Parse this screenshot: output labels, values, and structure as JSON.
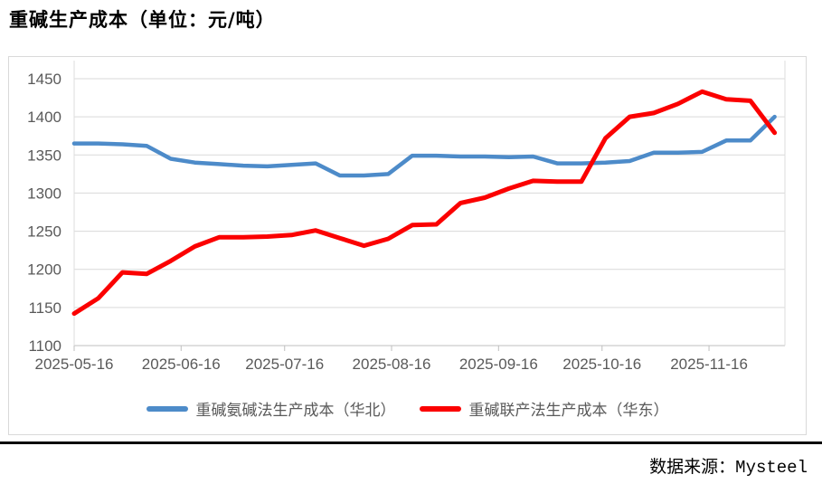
{
  "title": "重碱生产成本（单位：元/吨）",
  "source": "数据来源：Mysteel",
  "chart_data": {
    "type": "line",
    "title": "重碱生产成本（单位：元/吨）",
    "x": [
      "2025-05-16",
      "2025-05-23",
      "2025-05-30",
      "2025-06-06",
      "2025-06-13",
      "2025-06-20",
      "2025-06-27",
      "2025-07-04",
      "2025-07-11",
      "2025-07-18",
      "2025-07-25",
      "2025-08-01",
      "2025-08-08",
      "2025-08-15",
      "2025-08-22",
      "2025-08-29",
      "2025-09-05",
      "2025-09-12",
      "2025-09-19",
      "2025-09-26",
      "2025-10-03",
      "2025-10-10",
      "2025-10-17",
      "2025-10-24",
      "2025-10-31",
      "2025-11-07",
      "2025-11-14",
      "2025-11-21",
      "2025-11-28",
      "2025-12-05"
    ],
    "series": [
      {
        "name": "重碱氨碱法生产成本（华北）",
        "color": "#4d8bc9",
        "values": [
          1365,
          1365,
          1364,
          1362,
          1345,
          1340,
          1338,
          1336,
          1335,
          1337,
          1339,
          1323,
          1323,
          1325,
          1349,
          1349,
          1348,
          1348,
          1347,
          1348,
          1339,
          1339,
          1340,
          1342,
          1353,
          1353,
          1354,
          1369,
          1369,
          1400
        ]
      },
      {
        "name": "重碱联产法生产成本（华东）",
        "color": "#fb0000",
        "values": [
          1142,
          1162,
          1196,
          1194,
          1211,
          1230,
          1242,
          1242,
          1243,
          1245,
          1251,
          1241,
          1231,
          1240,
          1258,
          1259,
          1287,
          1294,
          1306,
          1316,
          1315,
          1315,
          1372,
          1400,
          1405,
          1417,
          1433,
          1423,
          1421,
          1379
        ]
      }
    ],
    "xlabel": "",
    "ylabel": "",
    "ylim": [
      1100,
      1450
    ],
    "yticks": [
      1100,
      1150,
      1200,
      1250,
      1300,
      1350,
      1400,
      1450
    ],
    "xticks": [
      "2025-05-16",
      "2025-06-16",
      "2025-07-16",
      "2025-08-16",
      "2025-09-16",
      "2025-10-16",
      "2025-11-16"
    ],
    "xlim": [
      "2025-05-16",
      "2025-12-08"
    ],
    "grid": true,
    "legend_position": "bottom"
  }
}
